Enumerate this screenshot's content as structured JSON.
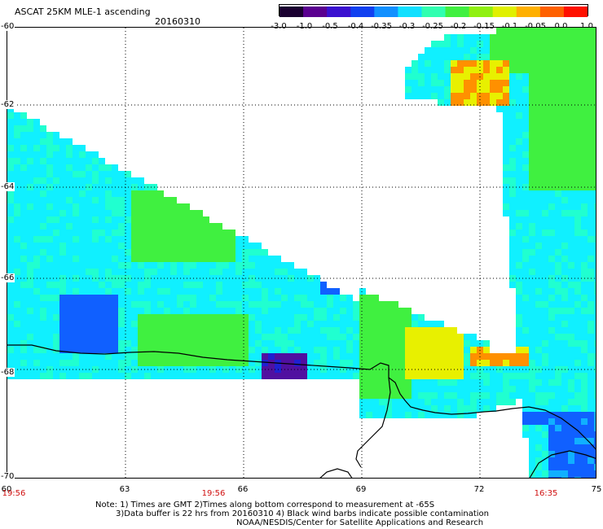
{
  "header": {
    "title": "ASCAT 25KM MLE-1 ascending",
    "date": "20160310"
  },
  "colorbar": {
    "labels": [
      "-3.0",
      "-1.0",
      "-0.5",
      "-0.4",
      "-0.35",
      "-0.3",
      "-0.25",
      "-0.2",
      "-0.15",
      "-0.1",
      "-0.05",
      "0.0",
      "1.0"
    ],
    "colors": [
      "#1a0030",
      "#5a0090",
      "#3a10d0",
      "#1040f0",
      "#1090ff",
      "#10e0ff",
      "#30ffb0",
      "#40f040",
      "#90f010",
      "#e0f000",
      "#ffb000",
      "#ff6000",
      "#ff1000"
    ]
  },
  "axes": {
    "lat_labels": [
      "-60",
      "-62",
      "-64",
      "-66",
      "-68",
      "-70"
    ],
    "lon_labels": [
      "60",
      "63",
      "66",
      "69",
      "72",
      "75"
    ],
    "time_labels": [
      "19:56",
      "19:56",
      "16:35"
    ]
  },
  "notes": [
    "Note: 1) Times are GMT 2)Times along bottom correspond to measurement at -65S",
    "3)Data buffer is 22 hrs from 20160310 4) Black wind barbs indicate possible contamination",
    "NOAA/NESDIS/Center for Satellite Applications and Research"
  ],
  "map_colors": {
    "blue": "#1060ff",
    "midblue": "#10b0ff",
    "cyan": "#10f0ff",
    "aqua": "#20ffd0",
    "green": "#40f040",
    "lime": "#90f010",
    "yellow": "#e8f000",
    "orange": "#ff9000",
    "darkblue": "#2020d0",
    "purple": "#5010a0"
  }
}
